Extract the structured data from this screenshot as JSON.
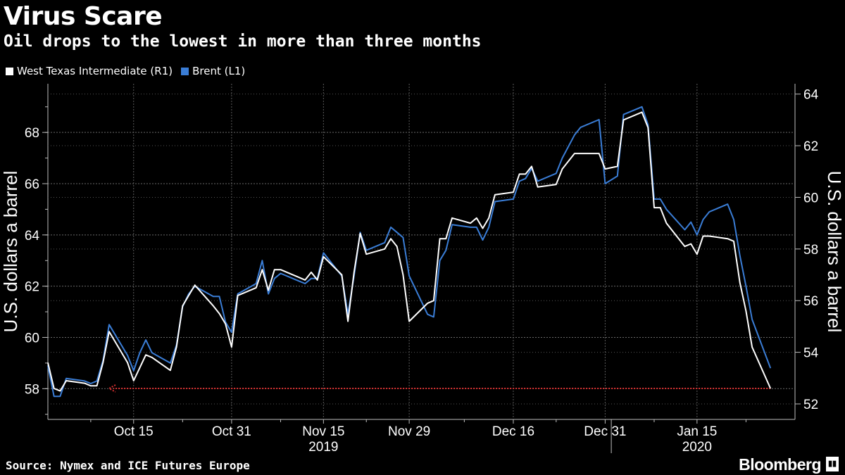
{
  "header": {
    "title": "Virus Scare",
    "subtitle": "Oil drops to the lowest in more than three months"
  },
  "legend": [
    {
      "label": "West Texas Intermediate (R1)",
      "color": "#ffffff"
    },
    {
      "label": "Brent (L1)",
      "color": "#3a7dd6"
    }
  ],
  "footer": {
    "source": "Source: Nymex and ICE Futures Europe",
    "brand": "Bloomberg"
  },
  "chart_data": {
    "type": "line",
    "xlim": [
      "2019-10-01",
      "2020-01-31"
    ],
    "x_ticks": [
      {
        "date": "2019-10-15",
        "label": "Oct 15"
      },
      {
        "date": "2019-10-31",
        "label": "Oct 31"
      },
      {
        "date": "2019-11-15",
        "label": "Nov 15"
      },
      {
        "date": "2019-11-29",
        "label": "Nov 29"
      },
      {
        "date": "2019-12-16",
        "label": "Dec 16"
      },
      {
        "date": "2019-12-31",
        "label": "Dec 31"
      },
      {
        "date": "2020-01-15",
        "label": "Jan 15"
      }
    ],
    "year_labels": [
      {
        "date": "2019-11-15",
        "label": "2019"
      },
      {
        "date": "2020-01-15",
        "label": "2020"
      }
    ],
    "left_axis": {
      "label": "U.S. dollars a barrel",
      "ylim": [
        56.8,
        69.9
      ],
      "ticks": [
        58,
        60,
        62,
        64,
        66,
        68
      ]
    },
    "right_axis": {
      "label": "U.S. dollars a barrel",
      "ylim": [
        51.4,
        64.4
      ],
      "ticks": [
        52,
        54,
        56,
        58,
        60,
        62,
        64
      ]
    },
    "series": [
      {
        "name": "Brent (L1)",
        "color": "#3a7dd6",
        "axis": "left",
        "points": [
          [
            "2019-10-01",
            58.9
          ],
          [
            "2019-10-02",
            57.7
          ],
          [
            "2019-10-03",
            57.7
          ],
          [
            "2019-10-04",
            58.4
          ],
          [
            "2019-10-07",
            58.3
          ],
          [
            "2019-10-08",
            58.2
          ],
          [
            "2019-10-09",
            58.3
          ],
          [
            "2019-10-10",
            59.1
          ],
          [
            "2019-10-11",
            60.5
          ],
          [
            "2019-10-14",
            59.3
          ],
          [
            "2019-10-15",
            58.7
          ],
          [
            "2019-10-16",
            59.4
          ],
          [
            "2019-10-17",
            59.9
          ],
          [
            "2019-10-18",
            59.4
          ],
          [
            "2019-10-21",
            59.0
          ],
          [
            "2019-10-22",
            59.7
          ],
          [
            "2019-10-23",
            61.2
          ],
          [
            "2019-10-24",
            61.7
          ],
          [
            "2019-10-25",
            62.0
          ],
          [
            "2019-10-28",
            61.6
          ],
          [
            "2019-10-29",
            61.6
          ],
          [
            "2019-10-30",
            60.6
          ],
          [
            "2019-10-31",
            60.2
          ],
          [
            "2019-11-01",
            61.7
          ],
          [
            "2019-11-04",
            62.1
          ],
          [
            "2019-11-05",
            63.0
          ],
          [
            "2019-11-06",
            61.7
          ],
          [
            "2019-11-07",
            62.3
          ],
          [
            "2019-11-08",
            62.5
          ],
          [
            "2019-11-11",
            62.2
          ],
          [
            "2019-11-12",
            62.1
          ],
          [
            "2019-11-13",
            62.3
          ],
          [
            "2019-11-14",
            62.3
          ],
          [
            "2019-11-15",
            63.3
          ],
          [
            "2019-11-18",
            62.4
          ],
          [
            "2019-11-19",
            60.9
          ],
          [
            "2019-11-20",
            62.4
          ],
          [
            "2019-11-21",
            64.1
          ],
          [
            "2019-11-22",
            63.4
          ],
          [
            "2019-11-25",
            63.7
          ],
          [
            "2019-11-26",
            64.3
          ],
          [
            "2019-11-27",
            64.1
          ],
          [
            "2019-11-28",
            63.9
          ],
          [
            "2019-11-29",
            62.4
          ],
          [
            "2019-12-02",
            60.9
          ],
          [
            "2019-12-03",
            60.8
          ],
          [
            "2019-12-04",
            63.0
          ],
          [
            "2019-12-05",
            63.4
          ],
          [
            "2019-12-06",
            64.4
          ],
          [
            "2019-12-09",
            64.3
          ],
          [
            "2019-12-10",
            64.3
          ],
          [
            "2019-12-11",
            63.8
          ],
          [
            "2019-12-12",
            64.3
          ],
          [
            "2019-12-13",
            65.3
          ],
          [
            "2019-12-16",
            65.4
          ],
          [
            "2019-12-17",
            66.1
          ],
          [
            "2019-12-18",
            66.2
          ],
          [
            "2019-12-19",
            66.6
          ],
          [
            "2019-12-20",
            66.1
          ],
          [
            "2019-12-23",
            66.4
          ],
          [
            "2019-12-24",
            67.0
          ],
          [
            "2019-12-26",
            67.9
          ],
          [
            "2019-12-27",
            68.2
          ],
          [
            "2019-12-30",
            68.5
          ],
          [
            "2019-12-31",
            66.0
          ],
          [
            "2020-01-02",
            66.3
          ],
          [
            "2020-01-03",
            68.7
          ],
          [
            "2020-01-06",
            69.0
          ],
          [
            "2020-01-07",
            68.3
          ],
          [
            "2020-01-08",
            65.4
          ],
          [
            "2020-01-09",
            65.4
          ],
          [
            "2020-01-10",
            65.0
          ],
          [
            "2020-01-13",
            64.2
          ],
          [
            "2020-01-14",
            64.5
          ],
          [
            "2020-01-15",
            64.0
          ],
          [
            "2020-01-16",
            64.6
          ],
          [
            "2020-01-17",
            64.9
          ],
          [
            "2020-01-20",
            65.2
          ],
          [
            "2020-01-21",
            64.6
          ],
          [
            "2020-01-22",
            63.2
          ],
          [
            "2020-01-23",
            62.0
          ],
          [
            "2020-01-24",
            60.7
          ],
          [
            "2020-01-27",
            58.8
          ]
        ]
      },
      {
        "name": "West Texas Intermediate (R1)",
        "color": "#ffffff",
        "axis": "right",
        "points": [
          [
            "2019-10-01",
            53.6
          ],
          [
            "2019-10-02",
            52.6
          ],
          [
            "2019-10-03",
            52.5
          ],
          [
            "2019-10-04",
            52.9
          ],
          [
            "2019-10-07",
            52.8
          ],
          [
            "2019-10-08",
            52.7
          ],
          [
            "2019-10-09",
            52.7
          ],
          [
            "2019-10-10",
            53.6
          ],
          [
            "2019-10-11",
            54.8
          ],
          [
            "2019-10-14",
            53.6
          ],
          [
            "2019-10-15",
            52.9
          ],
          [
            "2019-10-16",
            53.4
          ],
          [
            "2019-10-17",
            53.9
          ],
          [
            "2019-10-18",
            53.8
          ],
          [
            "2019-10-21",
            53.3
          ],
          [
            "2019-10-22",
            54.2
          ],
          [
            "2019-10-23",
            55.8
          ],
          [
            "2019-10-24",
            56.2
          ],
          [
            "2019-10-25",
            56.6
          ],
          [
            "2019-10-28",
            55.8
          ],
          [
            "2019-10-29",
            55.5
          ],
          [
            "2019-10-30",
            55.1
          ],
          [
            "2019-10-31",
            54.2
          ],
          [
            "2019-11-01",
            56.2
          ],
          [
            "2019-11-04",
            56.5
          ],
          [
            "2019-11-05",
            57.2
          ],
          [
            "2019-11-06",
            56.4
          ],
          [
            "2019-11-07",
            57.2
          ],
          [
            "2019-11-08",
            57.2
          ],
          [
            "2019-11-11",
            56.9
          ],
          [
            "2019-11-12",
            56.8
          ],
          [
            "2019-11-13",
            57.1
          ],
          [
            "2019-11-14",
            56.8
          ],
          [
            "2019-11-15",
            57.7
          ],
          [
            "2019-11-18",
            57.0
          ],
          [
            "2019-11-19",
            55.2
          ],
          [
            "2019-11-20",
            57.1
          ],
          [
            "2019-11-21",
            58.6
          ],
          [
            "2019-11-22",
            57.8
          ],
          [
            "2019-11-25",
            58.0
          ],
          [
            "2019-11-26",
            58.4
          ],
          [
            "2019-11-27",
            58.1
          ],
          [
            "2019-11-28",
            57.0
          ],
          [
            "2019-11-29",
            55.2
          ],
          [
            "2019-12-02",
            55.9
          ],
          [
            "2019-12-03",
            56.0
          ],
          [
            "2019-12-04",
            58.4
          ],
          [
            "2019-12-05",
            58.4
          ],
          [
            "2019-12-06",
            59.2
          ],
          [
            "2019-12-09",
            59.0
          ],
          [
            "2019-12-10",
            59.2
          ],
          [
            "2019-12-11",
            58.8
          ],
          [
            "2019-12-12",
            59.2
          ],
          [
            "2019-12-13",
            60.1
          ],
          [
            "2019-12-16",
            60.2
          ],
          [
            "2019-12-17",
            60.9
          ],
          [
            "2019-12-18",
            60.9
          ],
          [
            "2019-12-19",
            61.2
          ],
          [
            "2019-12-20",
            60.4
          ],
          [
            "2019-12-23",
            60.5
          ],
          [
            "2019-12-24",
            61.1
          ],
          [
            "2019-12-26",
            61.7
          ],
          [
            "2019-12-27",
            61.7
          ],
          [
            "2019-12-30",
            61.7
          ],
          [
            "2019-12-31",
            61.1
          ],
          [
            "2020-01-02",
            61.2
          ],
          [
            "2020-01-03",
            63.0
          ],
          [
            "2020-01-06",
            63.3
          ],
          [
            "2020-01-07",
            62.7
          ],
          [
            "2020-01-08",
            59.6
          ],
          [
            "2020-01-09",
            59.6
          ],
          [
            "2020-01-10",
            59.0
          ],
          [
            "2020-01-13",
            58.1
          ],
          [
            "2020-01-14",
            58.2
          ],
          [
            "2020-01-15",
            57.8
          ],
          [
            "2020-01-16",
            58.5
          ],
          [
            "2020-01-17",
            58.5
          ],
          [
            "2020-01-20",
            58.4
          ],
          [
            "2020-01-21",
            58.3
          ],
          [
            "2020-01-22",
            56.7
          ],
          [
            "2020-01-23",
            55.6
          ],
          [
            "2020-01-24",
            54.2
          ],
          [
            "2020-01-27",
            52.6
          ]
        ]
      }
    ],
    "annotation": {
      "type": "arrow",
      "style": "dotted",
      "color": "#d93030",
      "value_right_axis": 52.6,
      "from_date": "2020-01-27",
      "to_date": "2019-10-11"
    }
  }
}
